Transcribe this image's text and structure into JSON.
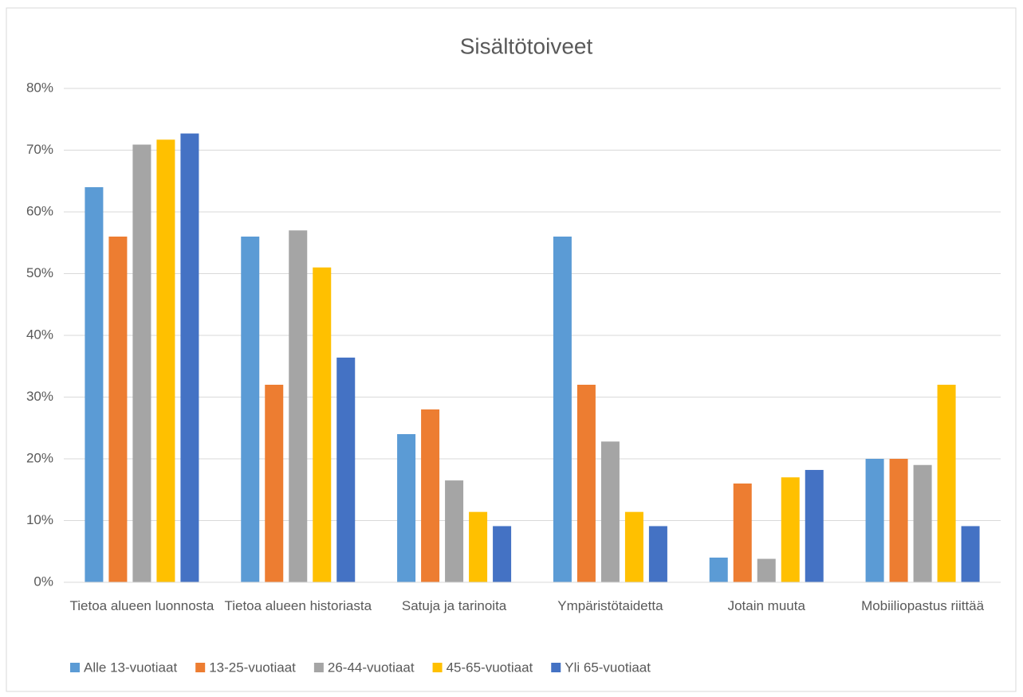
{
  "chart_data": {
    "type": "bar",
    "title": "Sisältötoiveet",
    "categories": [
      "Tietoa alueen luonnosta",
      "Tietoa alueen historiasta",
      "Satuja ja tarinoita",
      "Ympäristötaidetta",
      "Jotain muuta",
      "Mobiiliopastus riittää"
    ],
    "series": [
      {
        "name": "Alle 13-vuotiaat",
        "color": "#5b9bd5",
        "values": [
          64,
          56,
          24,
          56,
          4,
          20
        ]
      },
      {
        "name": "13-25-vuotiaat",
        "color": "#ed7d31",
        "values": [
          56,
          32,
          28,
          32,
          16,
          20
        ]
      },
      {
        "name": "26-44-vuotiaat",
        "color": "#a5a5a5",
        "values": [
          70.9,
          57,
          16.5,
          22.8,
          3.8,
          19
        ]
      },
      {
        "name": "45-65-vuotiaat",
        "color": "#ffc000",
        "values": [
          71.7,
          51,
          11.4,
          11.4,
          17,
          32
        ]
      },
      {
        "name": "Yli 65-vuotiaat",
        "color": "#4472c4",
        "values": [
          72.7,
          36.4,
          9.1,
          9.1,
          18.2,
          9.1
        ]
      }
    ],
    "ylim": [
      0,
      80
    ],
    "yticks": [
      {
        "value": 0,
        "label": "0%"
      },
      {
        "value": 10,
        "label": "10%"
      },
      {
        "value": 20,
        "label": "20%"
      },
      {
        "value": 30,
        "label": "30%"
      },
      {
        "value": 40,
        "label": "40%"
      },
      {
        "value": 50,
        "label": "50%"
      },
      {
        "value": 60,
        "label": "60%"
      },
      {
        "value": 70,
        "label": "70%"
      },
      {
        "value": 80,
        "label": "80%"
      }
    ],
    "grid": true,
    "legend": "bottom"
  }
}
